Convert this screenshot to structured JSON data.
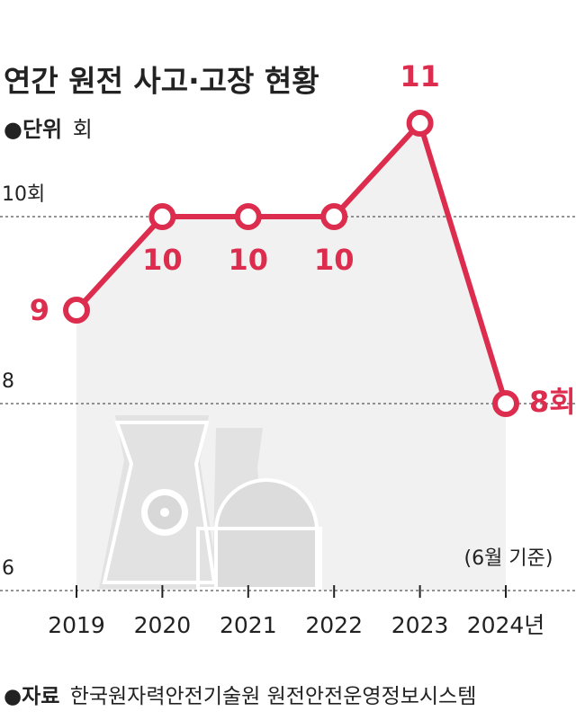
{
  "chart_data": {
    "type": "line",
    "title": "연간 원전 사고·고장 현황",
    "unit_label": "●단위",
    "unit": "회",
    "categories": [
      "2019",
      "2020",
      "2021",
      "2022",
      "2023",
      "2024년"
    ],
    "values": [
      9,
      10,
      10,
      10,
      11,
      8
    ],
    "value_labels": [
      "9",
      "10",
      "10",
      "10",
      "11",
      "8회"
    ],
    "color": "#dc2d4e",
    "ylim": [
      6,
      11
    ],
    "yticks": [
      6,
      8,
      {
        "value": 10,
        "label": "10회"
      }
    ],
    "grid": true,
    "annotation": "(6월 기준)",
    "source_label": "●자료",
    "source": "한국원자력안전기술원 원전안전운영정보시스템"
  }
}
